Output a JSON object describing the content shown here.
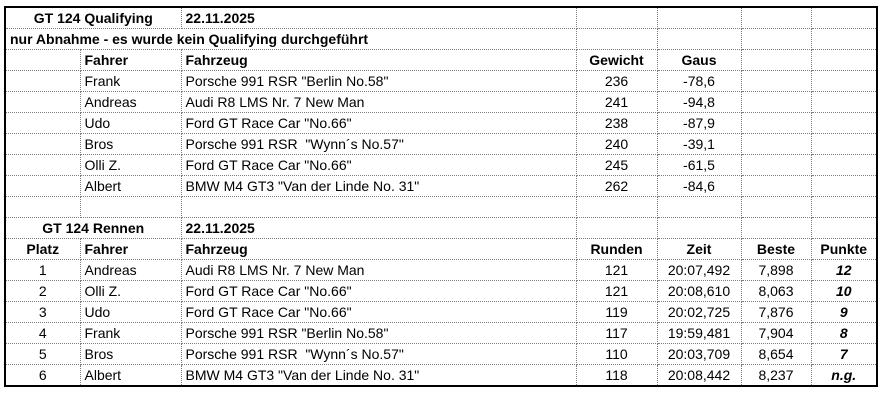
{
  "qualifying": {
    "title": "GT 124 Qualifying",
    "date": "22.11.2025",
    "note": "nur Abnahme - es wurde kein Qualifying durchgeführt",
    "col_headers": {
      "fahrer": "Fahrer",
      "fahrzeug": "Fahrzeug",
      "gewicht": "Gewicht",
      "gaus": "Gaus"
    },
    "rows": [
      {
        "fahrer": "Frank",
        "fahrzeug": "Porsche 991 RSR \"Berlin No.58\"",
        "gewicht": "236",
        "gaus": "-78,6"
      },
      {
        "fahrer": "Andreas",
        "fahrzeug": "Audi R8 LMS Nr. 7 New Man",
        "gewicht": "241",
        "gaus": "-94,8"
      },
      {
        "fahrer": "Udo",
        "fahrzeug": "Ford GT Race Car \"No.66\"",
        "gewicht": "238",
        "gaus": "-87,9"
      },
      {
        "fahrer": "Bros",
        "fahrzeug": "Porsche 991 RSR  \"Wynn´s No.57\"",
        "gewicht": "240",
        "gaus": "-39,1"
      },
      {
        "fahrer": "Olli Z.",
        "fahrzeug": "Ford GT Race Car \"No.66\"",
        "gewicht": "245",
        "gaus": "-61,5"
      },
      {
        "fahrer": "Albert",
        "fahrzeug": "BMW M4 GT3 \"Van der Linde No. 31\"",
        "gewicht": "262",
        "gaus": "-84,6"
      }
    ]
  },
  "race": {
    "title": "GT 124 Rennen",
    "date": "22.11.2025",
    "col_headers": {
      "platz": "Platz",
      "fahrer": "Fahrer",
      "fahrzeug": "Fahrzeug",
      "runden": "Runden",
      "zeit": "Zeit",
      "beste": "Beste",
      "punkte": "Punkte"
    },
    "rows": [
      {
        "platz": "1",
        "fahrer": "Andreas",
        "fahrzeug": "Audi R8 LMS Nr. 7 New Man",
        "runden": "121",
        "zeit": "20:07,492",
        "beste": "7,898",
        "punkte": "12"
      },
      {
        "platz": "2",
        "fahrer": "Olli Z.",
        "fahrzeug": "Ford GT Race Car \"No.66\"",
        "runden": "121",
        "zeit": "20:08,610",
        "beste": "8,063",
        "punkte": "10"
      },
      {
        "platz": "3",
        "fahrer": "Udo",
        "fahrzeug": "Ford GT Race Car \"No.66\"",
        "runden": "119",
        "zeit": "20:02,725",
        "beste": "7,876",
        "punkte": "9"
      },
      {
        "platz": "4",
        "fahrer": "Frank",
        "fahrzeug": "Porsche 991 RSR \"Berlin No.58\"",
        "runden": "117",
        "zeit": "19:59,481",
        "beste": "7,904",
        "punkte": "8"
      },
      {
        "platz": "5",
        "fahrer": "Bros",
        "fahrzeug": "Porsche 991 RSR  \"Wynn´s No.57\"",
        "runden": "110",
        "zeit": "20:03,709",
        "beste": "8,654",
        "punkte": "7"
      },
      {
        "platz": "6",
        "fahrer": "Albert",
        "fahrzeug": "BMW M4 GT3 \"Van der Linde No. 31\"",
        "runden": "118",
        "zeit": "20:08,442",
        "beste": "8,237",
        "punkte": "n.g."
      }
    ]
  },
  "colors": {
    "outer_border": "#000000",
    "gridline": "#7d7d7d",
    "background": "#ffffff",
    "text": "#000000"
  }
}
